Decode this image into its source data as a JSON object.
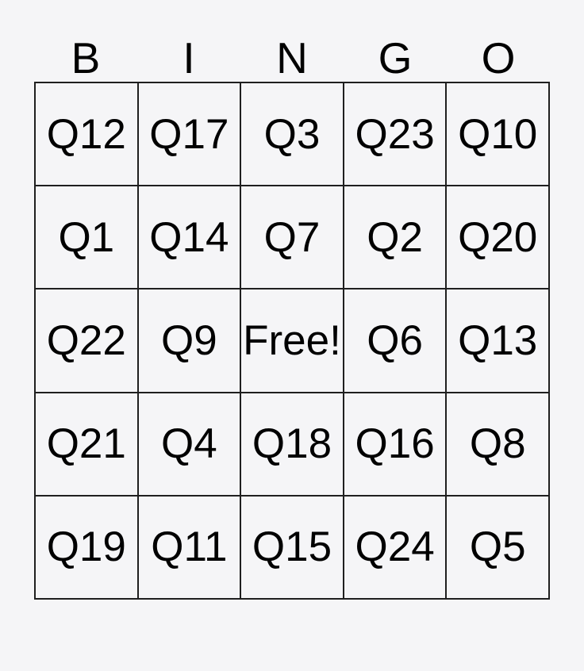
{
  "colors": {
    "page_background": "#f5f5f7",
    "grid_line": "#1f1f1f",
    "text": "#000000"
  },
  "header": {
    "letters": [
      "B",
      "I",
      "N",
      "G",
      "O"
    ]
  },
  "card": {
    "rows": [
      [
        "Q12",
        "Q17",
        "Q3",
        "Q23",
        "Q10"
      ],
      [
        "Q1",
        "Q14",
        "Q7",
        "Q2",
        "Q20"
      ],
      [
        "Q22",
        "Q9",
        "Free!",
        "Q6",
        "Q13"
      ],
      [
        "Q21",
        "Q4",
        "Q18",
        "Q16",
        "Q8"
      ],
      [
        "Q19",
        "Q11",
        "Q15",
        "Q24",
        "Q5"
      ]
    ]
  }
}
